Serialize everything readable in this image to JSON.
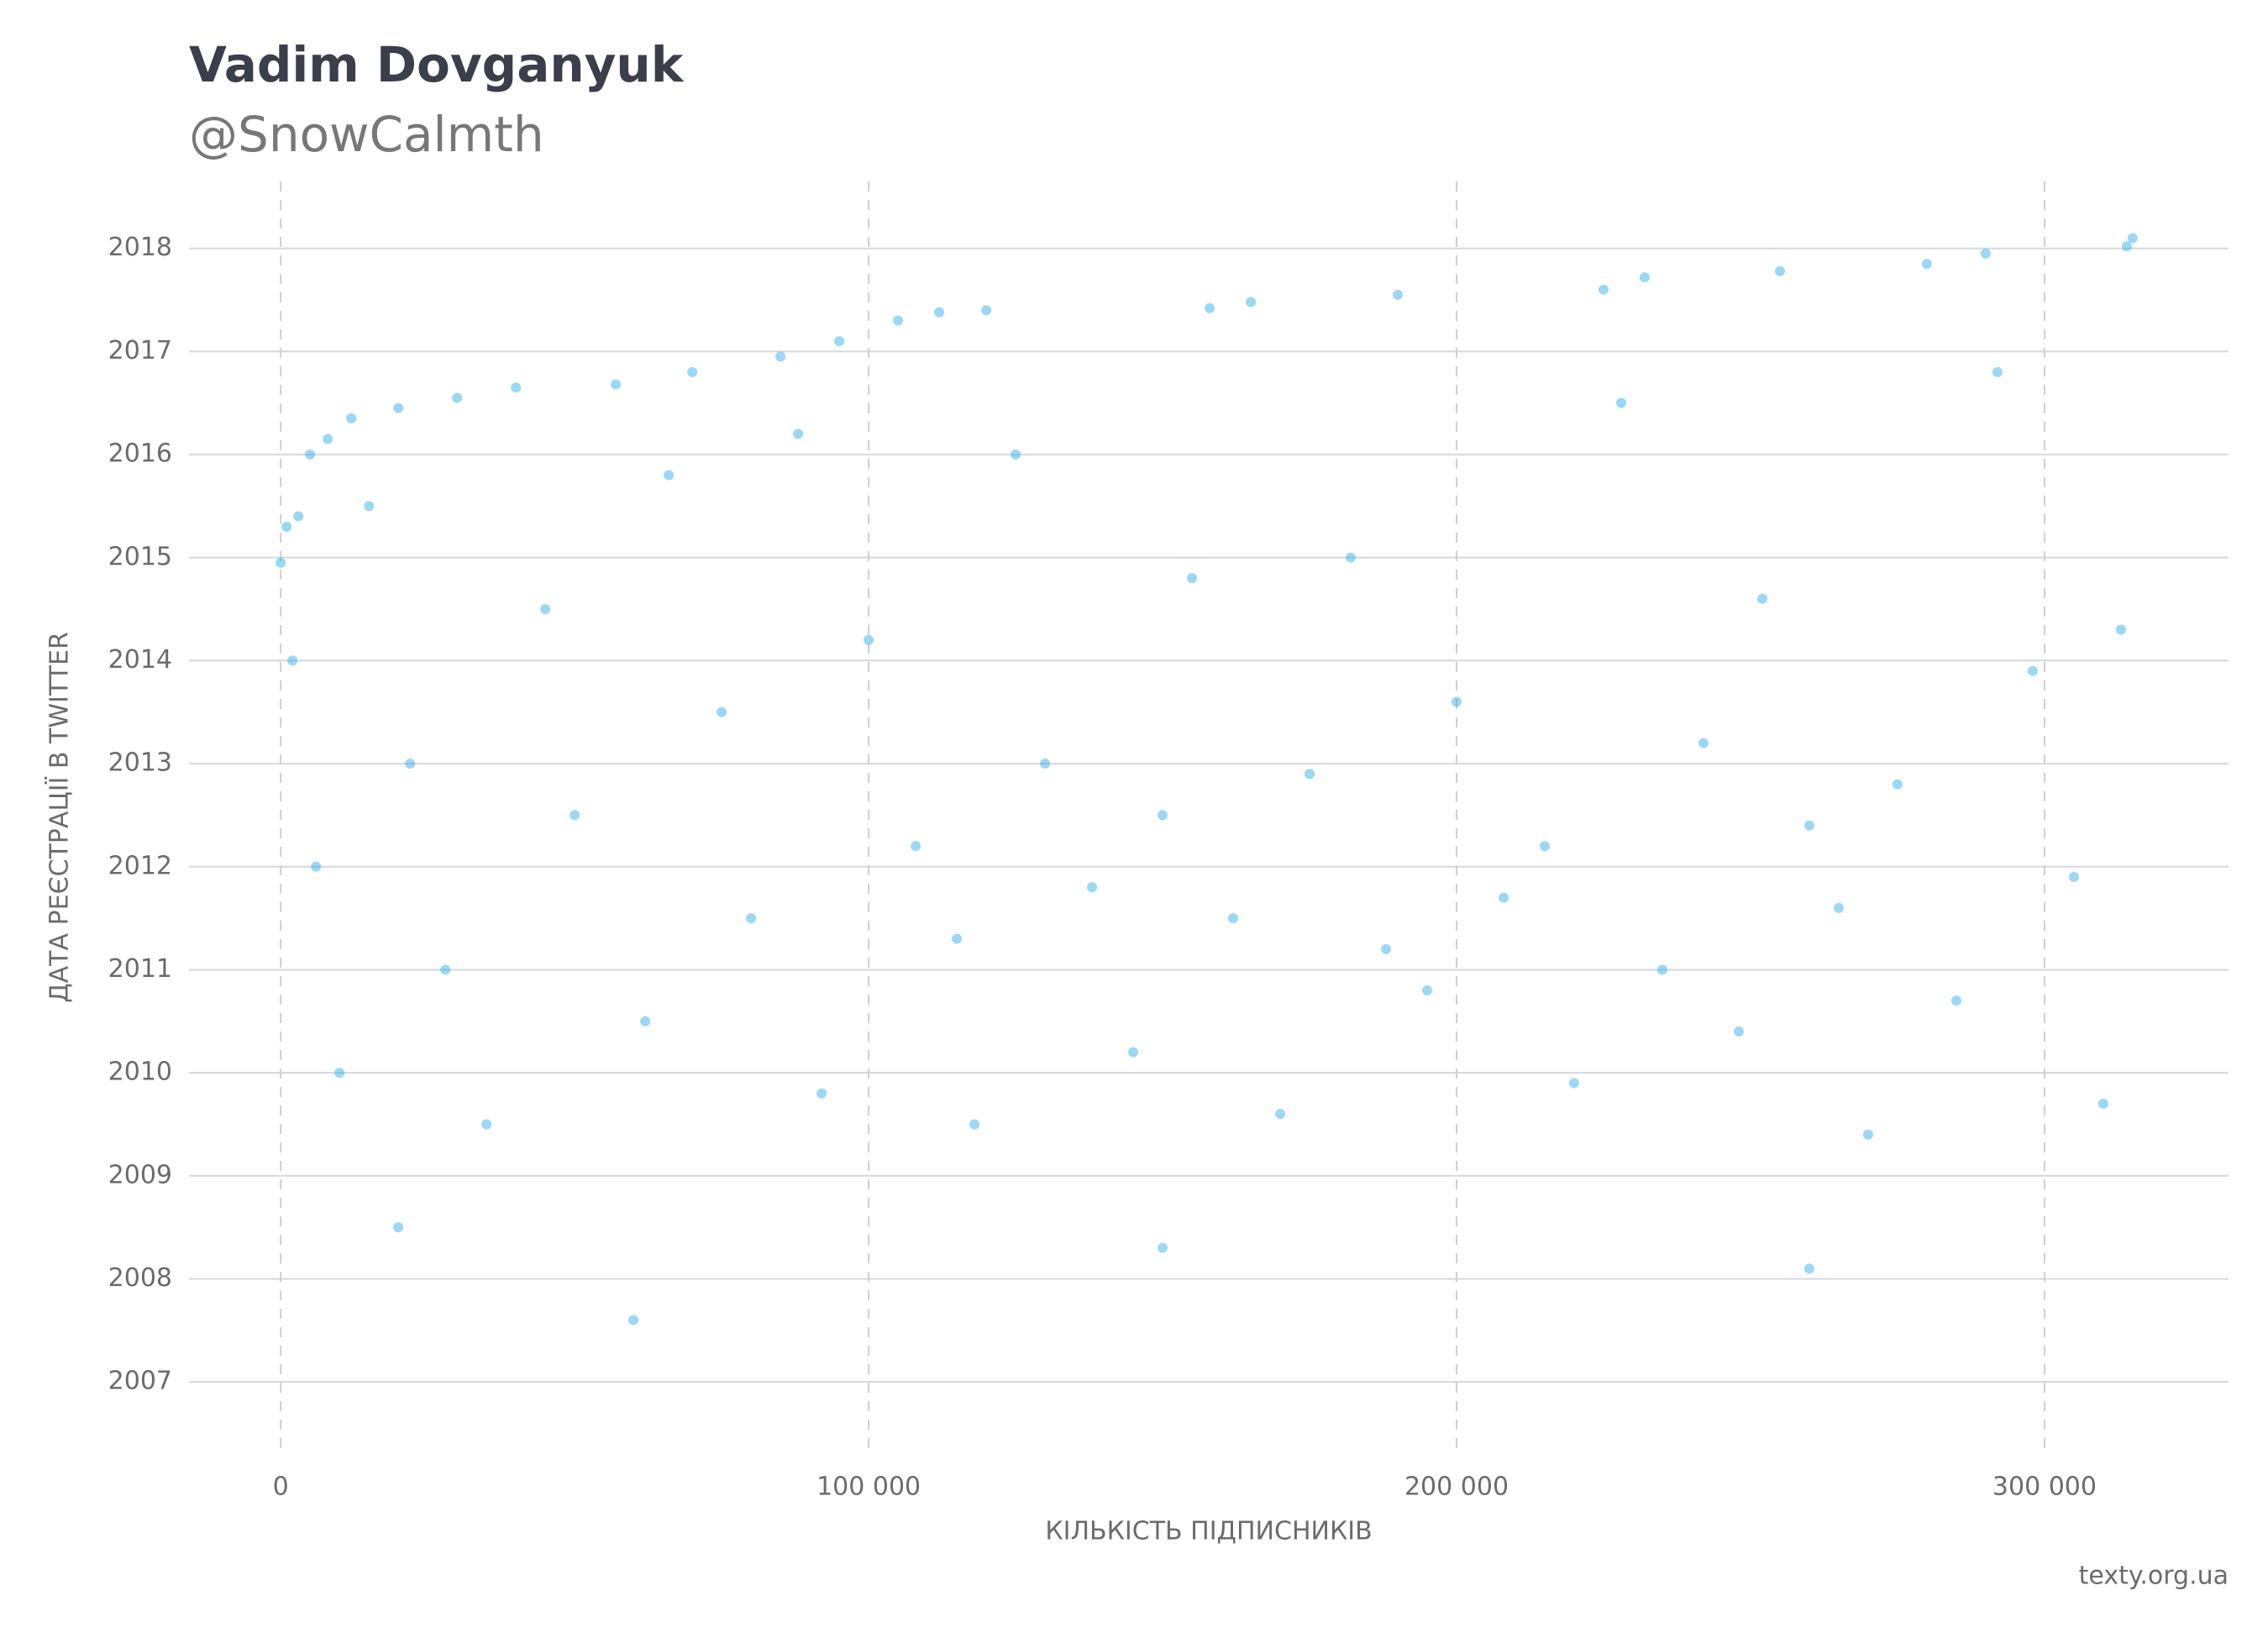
{
  "chart_data": {
    "type": "scatter",
    "title": "Vadim Dovganyuk",
    "subtitle": "@SnowCalmth",
    "x_label": "КІЛЬКІСТЬ ПІДПИСНИКІВ",
    "y_label": "ДАТА РЕЄСТРАЦІЇ В TWITTER",
    "source": "texty.org.ua",
    "color": "#1fa8e8",
    "x": [
      0,
      1000,
      3000,
      5000,
      8000,
      12000,
      20000,
      30000,
      40000,
      57000,
      70000,
      85000,
      95000,
      105000,
      112000,
      120000,
      158000,
      165000,
      190000,
      225000,
      232000,
      255000,
      280000,
      290000,
      314000,
      315000,
      2000,
      6000,
      10000,
      15000,
      22000,
      28000,
      35000,
      45000,
      50000,
      62000,
      66000,
      75000,
      80000,
      88000,
      92000,
      100000,
      108000,
      115000,
      118000,
      125000,
      130000,
      138000,
      145000,
      150000,
      155000,
      162000,
      170000,
      175000,
      182000,
      188000,
      195000,
      200000,
      208000,
      215000,
      220000,
      228000,
      235000,
      242000,
      248000,
      252000,
      260000,
      265000,
      270000,
      275000,
      285000,
      292000,
      298000,
      305000,
      310000,
      313000,
      20000,
      150000,
      260000,
      60000
    ],
    "values": [
      2014.95,
      2015.3,
      2015.4,
      2016.0,
      2016.15,
      2016.35,
      2016.45,
      2016.55,
      2016.65,
      2016.68,
      2016.8,
      2016.95,
      2017.1,
      2017.3,
      2017.38,
      2017.4,
      2017.42,
      2017.48,
      2017.55,
      2017.6,
      2017.72,
      2017.78,
      2017.85,
      2017.95,
      2018.02,
      2018.1,
      2014,
      2012,
      2010,
      2015.5,
      2013,
      2011,
      2009.5,
      2014.5,
      2012.5,
      2010.5,
      2015.8,
      2013.5,
      2011.5,
      2016.2,
      2009.8,
      2014.2,
      2012.2,
      2011.3,
      2009.5,
      2016,
      2013,
      2011.8,
      2010.2,
      2012.5,
      2014.8,
      2011.5,
      2009.6,
      2012.9,
      2015,
      2011.2,
      2010.8,
      2013.6,
      2011.7,
      2012.2,
      2009.9,
      2016.5,
      2011,
      2013.2,
      2010.4,
      2014.6,
      2012.4,
      2011.6,
      2009.4,
      2012.8,
      2010.7,
      2016.8,
      2013.9,
      2011.9,
      2009.7,
      2014.3,
      2008.5,
      2008.3,
      2008.1,
      2007.6
    ],
    "xlim": [
      -15600,
      331300
    ],
    "ylim": [
      2006.3,
      2018.65
    ],
    "xticks": [
      0,
      {
        "value": 100000,
        "label": "100 000"
      },
      {
        "value": 200000,
        "label": "200 000"
      },
      {
        "value": 300000,
        "label": "300 000"
      }
    ],
    "yticks": [
      2007,
      2008,
      2009,
      2010,
      2011,
      2012,
      2013,
      2014,
      2015,
      2016,
      2017,
      2018
    ],
    "grid": true
  }
}
